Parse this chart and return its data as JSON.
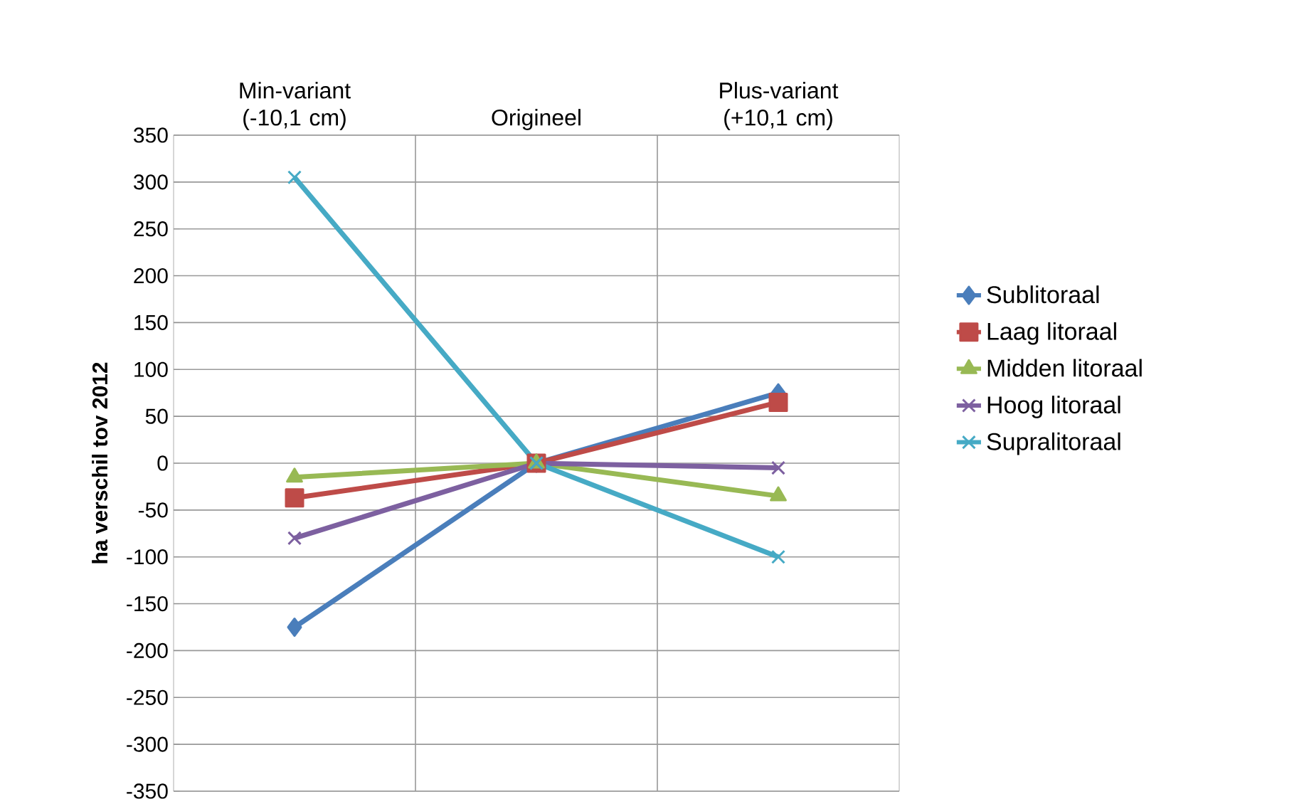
{
  "chart_data": {
    "type": "line",
    "ylabel": "ha verschil tov 2012",
    "categories": [
      "Min-variant (-10,1 cm)",
      "Origineel",
      "Plus-variant (+10,1 cm)"
    ],
    "series": [
      {
        "name": "Sublitoraal",
        "color": "#4a7ebb",
        "marker": "diamond",
        "values": [
          -175,
          0,
          75
        ]
      },
      {
        "name": "Laag litoraal",
        "color": "#be4b48",
        "marker": "square",
        "values": [
          -37,
          0,
          65
        ]
      },
      {
        "name": "Midden litoraal",
        "color": "#98b954",
        "marker": "triangle",
        "values": [
          -15,
          0,
          -35
        ]
      },
      {
        "name": "Hoog litoraal",
        "color": "#7d60a0",
        "marker": "cross",
        "values": [
          -80,
          0,
          -5
        ]
      },
      {
        "name": "Supralitoraal",
        "color": "#46aac5",
        "marker": "cross",
        "values": [
          305,
          0,
          -100
        ]
      }
    ],
    "ylim": [
      -350,
      350
    ],
    "yticks": [
      -350,
      -300,
      -250,
      -200,
      -150,
      -100,
      -50,
      0,
      50,
      100,
      150,
      200,
      250,
      300,
      350
    ],
    "grid": true,
    "legend": "right",
    "line_style": "solid"
  }
}
